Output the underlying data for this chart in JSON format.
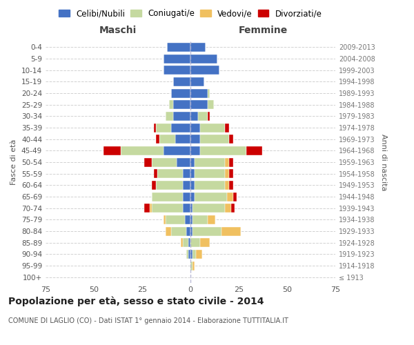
{
  "age_groups": [
    "100+",
    "95-99",
    "90-94",
    "85-89",
    "80-84",
    "75-79",
    "70-74",
    "65-69",
    "60-64",
    "55-59",
    "50-54",
    "45-49",
    "40-44",
    "35-39",
    "30-34",
    "25-29",
    "20-24",
    "15-19",
    "10-14",
    "5-9",
    "0-4"
  ],
  "birth_years": [
    "≤ 1913",
    "1914-1918",
    "1919-1923",
    "1924-1928",
    "1929-1933",
    "1934-1938",
    "1939-1943",
    "1944-1948",
    "1949-1953",
    "1954-1958",
    "1959-1963",
    "1964-1968",
    "1969-1973",
    "1974-1978",
    "1979-1983",
    "1984-1988",
    "1989-1993",
    "1994-1998",
    "1999-2003",
    "2004-2008",
    "2009-2013"
  ],
  "colors": {
    "celibi": "#4472C4",
    "coniugati": "#C5D9A0",
    "vedovi": "#F0C060",
    "divorziati": "#CC0000"
  },
  "maschi": {
    "celibi": [
      0,
      0,
      1,
      1,
      2,
      3,
      4,
      4,
      4,
      4,
      7,
      14,
      8,
      10,
      9,
      9,
      10,
      9,
      14,
      14,
      12
    ],
    "coniugati": [
      0,
      0,
      1,
      3,
      8,
      10,
      16,
      16,
      14,
      13,
      13,
      22,
      8,
      8,
      4,
      2,
      0,
      0,
      0,
      0,
      0
    ],
    "vedovi": [
      0,
      0,
      0,
      1,
      3,
      1,
      1,
      0,
      0,
      0,
      0,
      0,
      0,
      0,
      0,
      0,
      0,
      0,
      0,
      0,
      0
    ],
    "divorziati": [
      0,
      0,
      0,
      0,
      0,
      0,
      3,
      0,
      2,
      2,
      4,
      9,
      2,
      1,
      0,
      0,
      0,
      0,
      0,
      0,
      0
    ]
  },
  "femmine": {
    "celibi": [
      0,
      0,
      1,
      0,
      1,
      1,
      1,
      2,
      2,
      2,
      2,
      5,
      5,
      5,
      4,
      9,
      9,
      7,
      15,
      14,
      8
    ],
    "coniugati": [
      0,
      1,
      2,
      5,
      15,
      8,
      17,
      17,
      16,
      16,
      16,
      24,
      15,
      13,
      5,
      3,
      1,
      0,
      0,
      0,
      0
    ],
    "vedovi": [
      0,
      1,
      3,
      5,
      10,
      4,
      3,
      3,
      2,
      2,
      2,
      0,
      0,
      0,
      0,
      0,
      0,
      0,
      0,
      0,
      0
    ],
    "divorziati": [
      0,
      0,
      0,
      0,
      0,
      0,
      2,
      2,
      2,
      2,
      2,
      8,
      2,
      2,
      1,
      0,
      0,
      0,
      0,
      0,
      0
    ]
  },
  "title": "Popolazione per età, sesso e stato civile - 2014",
  "subtitle": "COMUNE DI LAGLIO (CO) - Dati ISTAT 1° gennaio 2014 - Elaborazione TUTTITALIA.IT",
  "xlabel_left": "Maschi",
  "xlabel_right": "Femmine",
  "ylabel_left": "Fasce di età",
  "ylabel_right": "Anni di nascita",
  "xlim": 75,
  "legend_labels": [
    "Celibi/Nubili",
    "Coniugati/e",
    "Vedovi/e",
    "Divorziati/e"
  ],
  "bg_color": "#FFFFFF",
  "grid_color": "#CCCCCC"
}
